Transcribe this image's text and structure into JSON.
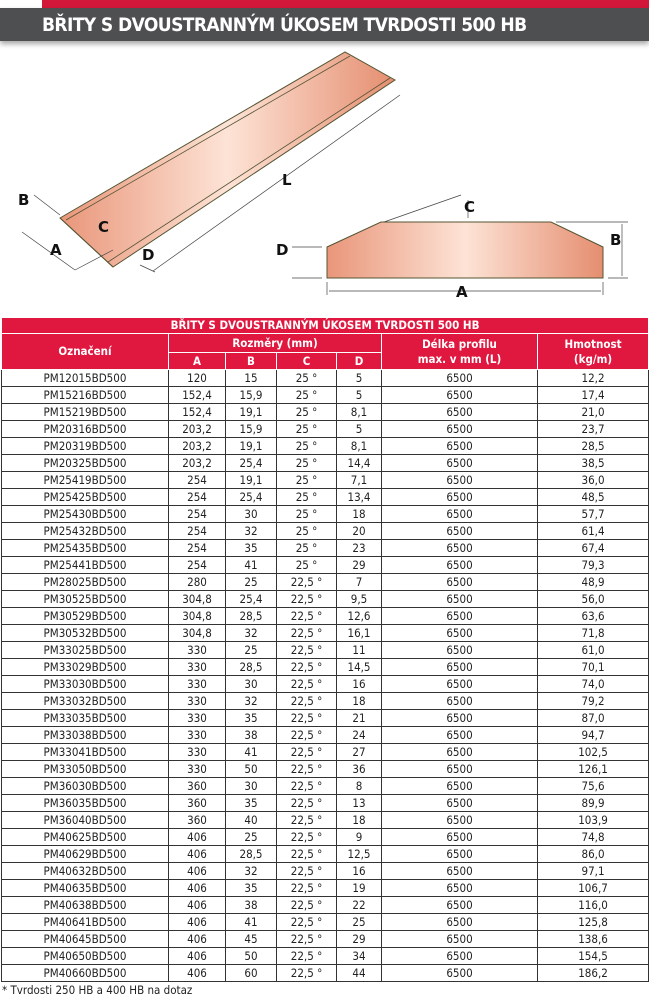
{
  "header": {
    "title": "BŘITY S DVOUSTRANNÝM ÚKOSEM TVRDOSTI 500 HB",
    "accent": "#d3173a",
    "bar_color": "#4d4f51"
  },
  "diagram": {
    "labels": {
      "L": "L",
      "A": "A",
      "B": "B",
      "C": "C",
      "D": "D"
    }
  },
  "table": {
    "title": "BŘITY S DVOUSTRANNÝM ÚKOSEM TVRDOSTI 500 HB",
    "headers": {
      "designation": "Označení",
      "dimensions": "Rozměry (mm)",
      "a": "A",
      "b": "B",
      "c": "C",
      "d": "D",
      "length_1": "Délka profilu",
      "length_2": "max. v mm (L)",
      "weight_1": "Hmotnost",
      "weight_2": "(kg/m)"
    },
    "header_color": "#e0173f",
    "rows": [
      [
        "PM12015BD500",
        "120",
        "15",
        "25 °",
        "5",
        "6500",
        "12,2"
      ],
      [
        "PM15216BD500",
        "152,4",
        "15,9",
        "25 °",
        "5",
        "6500",
        "17,4"
      ],
      [
        "PM15219BD500",
        "152,4",
        "19,1",
        "25 °",
        "8,1",
        "6500",
        "21,0"
      ],
      [
        "PM20316BD500",
        "203,2",
        "15,9",
        "25 °",
        "5",
        "6500",
        "23,7"
      ],
      [
        "PM20319BD500",
        "203,2",
        "19,1",
        "25 °",
        "8,1",
        "6500",
        "28,5"
      ],
      [
        "PM20325BD500",
        "203,2",
        "25,4",
        "25 °",
        "14,4",
        "6500",
        "38,5"
      ],
      [
        "PM25419BD500",
        "254",
        "19,1",
        "25 °",
        "7,1",
        "6500",
        "36,0"
      ],
      [
        "PM25425BD500",
        "254",
        "25,4",
        "25 °",
        "13,4",
        "6500",
        "48,5"
      ],
      [
        "PM25430BD500",
        "254",
        "30",
        "25 °",
        "18",
        "6500",
        "57,7"
      ],
      [
        "PM25432BD500",
        "254",
        "32",
        "25 °",
        "20",
        "6500",
        "61,4"
      ],
      [
        "PM25435BD500",
        "254",
        "35",
        "25 °",
        "23",
        "6500",
        "67,4"
      ],
      [
        "PM25441BD500",
        "254",
        "41",
        "25 °",
        "29",
        "6500",
        "79,3"
      ],
      [
        "PM28025BD500",
        "280",
        "25",
        "22,5 °",
        "7",
        "6500",
        "48,9"
      ],
      [
        "PM30525BD500",
        "304,8",
        "25,4",
        "22,5 °",
        "9,5",
        "6500",
        "56,0"
      ],
      [
        "PM30529BD500",
        "304,8",
        "28,5",
        "22,5 °",
        "12,6",
        "6500",
        "63,6"
      ],
      [
        "PM30532BD500",
        "304,8",
        "32",
        "22,5 °",
        "16,1",
        "6500",
        "71,8"
      ],
      [
        "PM33025BD500",
        "330",
        "25",
        "22,5 °",
        "11",
        "6500",
        "61,0"
      ],
      [
        "PM33029BD500",
        "330",
        "28,5",
        "22,5 °",
        "14,5",
        "6500",
        "70,1"
      ],
      [
        "PM33030BD500",
        "330",
        "30",
        "22,5 °",
        "16",
        "6500",
        "74,0"
      ],
      [
        "PM33032BD500",
        "330",
        "32",
        "22,5 °",
        "18",
        "6500",
        "79,2"
      ],
      [
        "PM33035BD500",
        "330",
        "35",
        "22,5 °",
        "21",
        "6500",
        "87,0"
      ],
      [
        "PM33038BD500",
        "330",
        "38",
        "22,5 °",
        "24",
        "6500",
        "94,7"
      ],
      [
        "PM33041BD500",
        "330",
        "41",
        "22,5 °",
        "27",
        "6500",
        "102,5"
      ],
      [
        "PM33050BD500",
        "330",
        "50",
        "22,5 °",
        "36",
        "6500",
        "126,1"
      ],
      [
        "PM36030BD500",
        "360",
        "30",
        "22,5 °",
        "8",
        "6500",
        "75,6"
      ],
      [
        "PM36035BD500",
        "360",
        "35",
        "22,5 °",
        "13",
        "6500",
        "89,9"
      ],
      [
        "PM36040BD500",
        "360",
        "40",
        "22,5 °",
        "18",
        "6500",
        "103,9"
      ],
      [
        "PM40625BD500",
        "406",
        "25",
        "22,5 °",
        "9",
        "6500",
        "74,8"
      ],
      [
        "PM40629BD500",
        "406",
        "28,5",
        "22,5 °",
        "12,5",
        "6500",
        "86,0"
      ],
      [
        "PM40632BD500",
        "406",
        "32",
        "22,5 °",
        "16",
        "6500",
        "97,1"
      ],
      [
        "PM40635BD500",
        "406",
        "35",
        "22,5 °",
        "19",
        "6500",
        "106,7"
      ],
      [
        "PM40638BD500",
        "406",
        "38",
        "22,5 °",
        "22",
        "6500",
        "116,0"
      ],
      [
        "PM40641BD500",
        "406",
        "41",
        "22,5 °",
        "25",
        "6500",
        "125,8"
      ],
      [
        "PM40645BD500",
        "406",
        "45",
        "22,5 °",
        "29",
        "6500",
        "138,6"
      ],
      [
        "PM40650BD500",
        "406",
        "50",
        "22,5 °",
        "34",
        "6500",
        "154,5"
      ],
      [
        "PM40660BD500",
        "406",
        "60",
        "22,5 °",
        "44",
        "6500",
        "186,2"
      ]
    ]
  },
  "footnote": "* Tvrdosti 250 HB a 400 HB na dotaz"
}
